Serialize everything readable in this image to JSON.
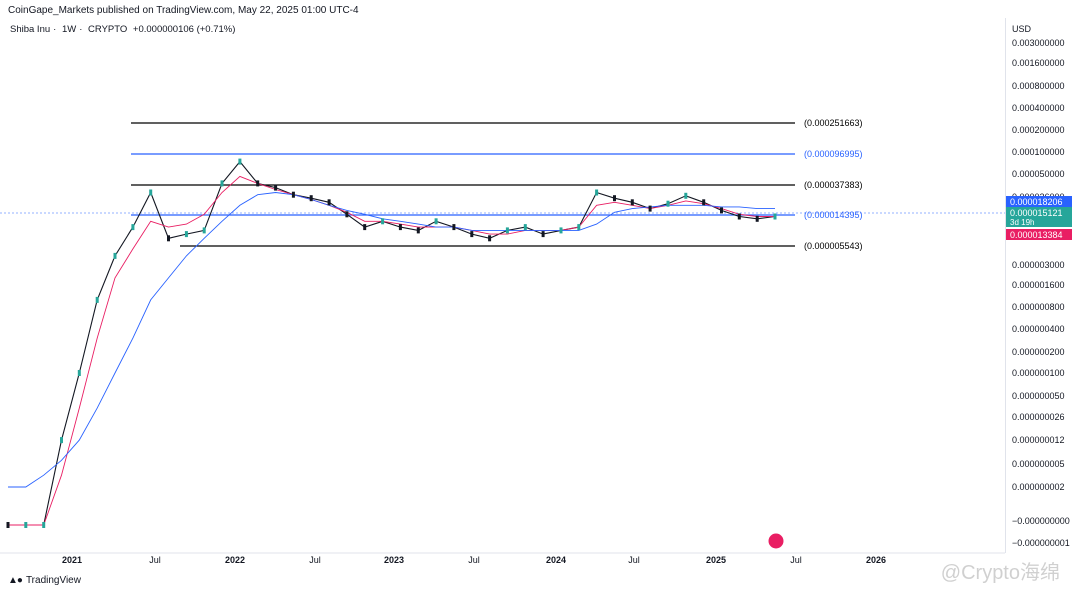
{
  "header": {
    "publisher": "CoinGape_Markets published on TradingView.com, May 22, 2025 01:00 UTC-4",
    "symbol": "Shiba Inu",
    "interval": "1W",
    "exchange": "CRYPTO",
    "change": "+0.000000106 (+0.71%)"
  },
  "price_axis": {
    "currency": "USD",
    "ticks": [
      "0.003000000",
      "0.001600000",
      "0.000800000",
      "0.000400000",
      "0.000200000",
      "0.000100000",
      "0.000050000",
      "0.000026000",
      "0.000003000",
      "0.000001600",
      "0.000000800",
      "0.000000400",
      "0.000000200",
      "0.000000100",
      "0.000000050",
      "0.000000026",
      "0.000000012",
      "0.000000005",
      "0.000000002",
      "−0.000000000",
      "−0.000000001"
    ]
  },
  "time_axis": {
    "ticks": [
      "2021",
      "Jul",
      "2022",
      "Jul",
      "2023",
      "Jul",
      "2024",
      "Jul",
      "2025",
      "Jul",
      "2026"
    ]
  },
  "price_tags": [
    {
      "label": "0.000018206",
      "color": "#2962ff",
      "countdown": ""
    },
    {
      "label": "0.000015121",
      "color": "#26a69a",
      "countdown": "3d 19h"
    },
    {
      "label": "0.000013384",
      "color": "#e91e63",
      "countdown": ""
    }
  ],
  "levels": [
    {
      "label": "(0.000251663)",
      "color": "#000000"
    },
    {
      "label": "(0.000096995)",
      "color": "#2962ff"
    },
    {
      "label": "(0.000037383)",
      "color": "#000000"
    },
    {
      "label": "(0.000014395)",
      "color": "#2962ff"
    },
    {
      "label": "(0.000005543)",
      "color": "#000000"
    }
  ],
  "footer": {
    "brand": "TradingView",
    "watermark": "@Crypto海绵"
  },
  "chart_data": {
    "type": "line",
    "series": [
      {
        "values": [
          4e-10,
          4e-10,
          5e-10,
          1e-08,
          1e-07,
          1e-06,
          4e-06,
          1e-05,
          3e-05,
          7e-06,
          8e-06,
          9e-06,
          4e-05,
          8e-05,
          4e-05,
          3.5e-05,
          2.8e-05,
          2.5e-05,
          2.2e-05,
          1.5e-05,
          1e-05,
          1.2e-05,
          1e-05,
          9e-06,
          1.2e-05,
          1e-05,
          8e-06,
          7e-06,
          9e-06,
          1e-05,
          8e-06,
          9e-06,
          1e-05,
          3e-05,
          2.5e-05,
          2.2e-05,
          1.8e-05,
          2.1e-05,
          2.7e-05,
          2.2e-05,
          1.7e-05,
          1.4e-05,
          1.3e-05,
          1.4e-05
        ]
      },
      {
        "values": [
          4e-10,
          4e-10,
          4e-10,
          3e-09,
          3e-08,
          3e-07,
          2e-06,
          5e-06,
          1.2e-05,
          1e-05,
          1.1e-05,
          1.5e-05,
          3e-05,
          5e-05,
          4e-05,
          3.3e-05,
          2.8e-05,
          2.4e-05,
          2e-05,
          1.6e-05,
          1.2e-05,
          1.2e-05,
          1.1e-05,
          1e-05,
          1e-05,
          1e-05,
          9e-06,
          8e-06,
          8e-06,
          9e-06,
          9e-06,
          9e-06,
          1e-05,
          2e-05,
          2.2e-05,
          2e-05,
          1.8e-05,
          2e-05,
          2.3e-05,
          2.1e-05,
          1.8e-05,
          1.5e-05,
          1.4e-05,
          1.4e-05
        ]
      },
      {
        "values": [
          2e-09,
          2e-09,
          3e-09,
          5e-09,
          1e-08,
          3e-08,
          1e-07,
          3e-07,
          1e-06,
          2e-06,
          4e-06,
          7e-06,
          1.2e-05,
          2e-05,
          2.8e-05,
          3e-05,
          2.8e-05,
          2.4e-05,
          2e-05,
          1.7e-05,
          1.5e-05,
          1.3e-05,
          1.2e-05,
          1.1e-05,
          1e-05,
          1e-05,
          9e-06,
          9e-06,
          9e-06,
          9e-06,
          9e-06,
          9e-06,
          9e-06,
          1.1e-05,
          1.6e-05,
          1.8e-05,
          1.9e-05,
          2e-05,
          2e-05,
          2e-05,
          1.9e-05,
          1.9e-05,
          1.8e-05,
          1.8e-05
        ]
      }
    ]
  }
}
